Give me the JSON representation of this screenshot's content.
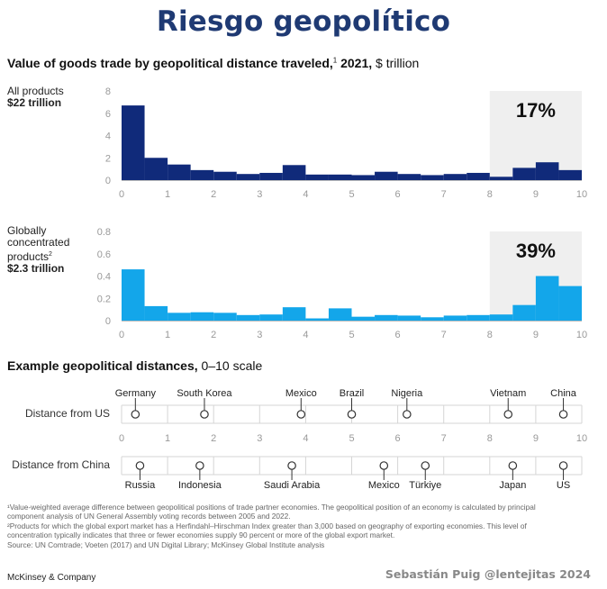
{
  "main_title": "Riesgo geopolítico",
  "chart_heading": {
    "bold": "Value of goods trade by geopolitical distance traveled,",
    "sup": "1",
    "year": " 2021,",
    "unit": " $ trillion"
  },
  "chart_data": [
    {
      "type": "bar",
      "label": "All products",
      "total": "$22 trillion",
      "x_bins_start": [
        0,
        0.5,
        1,
        1.5,
        2,
        2.5,
        3,
        3.5,
        4,
        4.5,
        5,
        5.5,
        6,
        6.5,
        7,
        7.5,
        8,
        8.5,
        9,
        9.5
      ],
      "bin_width": 0.5,
      "values": [
        6.7,
        2.0,
        1.4,
        0.9,
        0.75,
        0.55,
        0.65,
        1.35,
        0.5,
        0.5,
        0.45,
        0.75,
        0.55,
        0.45,
        0.55,
        0.65,
        0.3,
        1.1,
        1.6,
        0.9
      ],
      "xlim": [
        0,
        10
      ],
      "ylim": [
        0,
        8
      ],
      "yticks": [
        0,
        2,
        4,
        6,
        8
      ],
      "xticks": [
        0,
        1,
        2,
        3,
        4,
        5,
        6,
        7,
        8,
        9,
        10
      ],
      "shaded_range": [
        8,
        10
      ],
      "shaded_label": "17%",
      "color": "#102a7a"
    },
    {
      "type": "bar",
      "label": "Globally concentrated products",
      "label_sup": "2",
      "total": "$2.3 trillion",
      "x_bins_start": [
        0,
        0.5,
        1,
        1.5,
        2,
        2.5,
        3,
        3.5,
        4,
        4.5,
        5,
        5.5,
        6,
        6.5,
        7,
        7.5,
        8,
        8.5,
        9,
        9.5
      ],
      "bin_width": 0.5,
      "values": [
        0.46,
        0.13,
        0.07,
        0.075,
        0.07,
        0.05,
        0.055,
        0.12,
        0.02,
        0.11,
        0.035,
        0.05,
        0.045,
        0.03,
        0.045,
        0.05,
        0.055,
        0.14,
        0.4,
        0.31
      ],
      "xlim": [
        0,
        10
      ],
      "ylim": [
        0,
        0.8
      ],
      "yticks": [
        "0",
        "0.2",
        "0.4",
        "0.6",
        "0.8"
      ],
      "xticks": [
        0,
        1,
        2,
        3,
        4,
        5,
        6,
        7,
        8,
        9,
        10
      ],
      "shaded_range": [
        8,
        10
      ],
      "shaded_label": "39%",
      "color": "#13a6ea"
    }
  ],
  "examples": {
    "heading_bold": "Example geopolitical distances,",
    "heading_rest": " 0–10 scale",
    "xticks": [
      0,
      1,
      2,
      3,
      4,
      5,
      6,
      7,
      8,
      9,
      10
    ],
    "rows": [
      {
        "label": "Distance from US",
        "points": [
          {
            "name": "Germany",
            "value": 0.3
          },
          {
            "name": "South Korea",
            "value": 1.8
          },
          {
            "name": "Mexico",
            "value": 3.9
          },
          {
            "name": "Brazil",
            "value": 5.0
          },
          {
            "name": "Nigeria",
            "value": 6.2
          },
          {
            "name": "Vietnam",
            "value": 8.4
          },
          {
            "name": "China",
            "value": 9.6
          }
        ]
      },
      {
        "label": "Distance from China",
        "points": [
          {
            "name": "Russia",
            "value": 0.4
          },
          {
            "name": "Indonesia",
            "value": 1.7
          },
          {
            "name": "Saudi Arabia",
            "value": 3.7
          },
          {
            "name": "Mexico",
            "value": 5.7
          },
          {
            "name": "Türkiye",
            "value": 6.6
          },
          {
            "name": "Japan",
            "value": 8.5
          },
          {
            "name": "US",
            "value": 9.6
          }
        ]
      }
    ]
  },
  "footnotes": [
    "¹Value-weighted average difference between geopolitical positions of trade partner economies. The geopolitical position of an economy is calculated by principal",
    "  component analysis of UN General Assembly voting records between 2005 and 2022.",
    "²Products for which the global export market has a Herfindahl–Hirschman Index greater than 3,000 based on geography of exporting economies. This level of",
    "  concentration typically indicates that three or fewer economies supply 90 percent or more of the global export market.",
    "  Source: UN Comtrade; Voeten (2017) and UN Digital Library; McKinsey Global Institute analysis"
  ],
  "brand": "McKinsey & Company",
  "credit": "Sebastián Puig  @lentejitas 2024"
}
